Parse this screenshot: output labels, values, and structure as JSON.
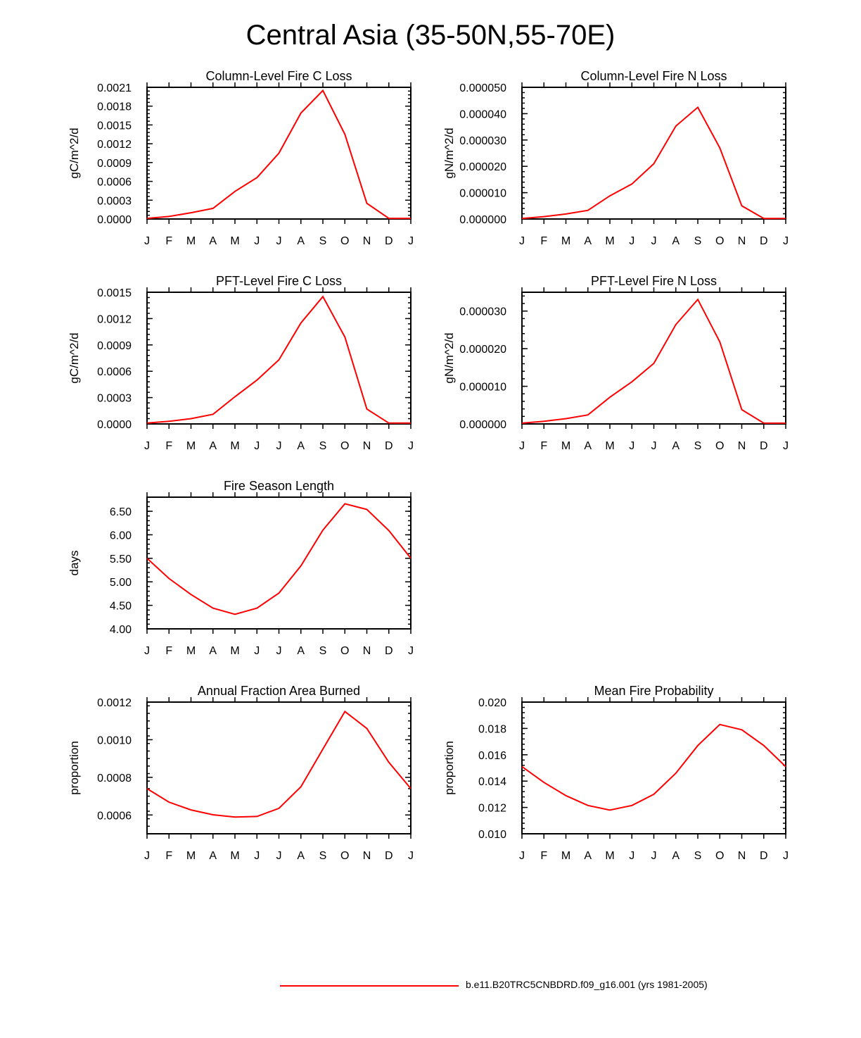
{
  "title": "Central Asia (35-50N,55-70E)",
  "legend": {
    "label": "b.e11.B20TRC5CNBDRD.f09_g16.001 (yrs 1981-2005)",
    "color": "#ff0000"
  },
  "chart_data": [
    {
      "type": "line",
      "title": "Column-Level Fire C Loss",
      "ylabel": "gC/m^2/d",
      "xlabel": "",
      "categories": [
        "J",
        "F",
        "M",
        "A",
        "M",
        "J",
        "J",
        "A",
        "S",
        "O",
        "N",
        "D",
        "J"
      ],
      "ylim": [
        0,
        0.0021
      ],
      "yticks": [
        "0.0000",
        "0.0003",
        "0.0006",
        "0.0009",
        "0.0012",
        "0.0015",
        "0.0018",
        "0.0021"
      ],
      "series": [
        {
          "name": "b.e11.B20TRC5CNBDRD.f09_g16.001 (yrs 1981-2005)",
          "values": [
            1e-05,
            4e-05,
            0.0001,
            0.00017,
            0.00044,
            0.00066,
            0.00105,
            0.00169,
            0.00205,
            0.00135,
            0.00025,
            1e-05,
            1e-05
          ]
        }
      ]
    },
    {
      "type": "line",
      "title": "Column-Level Fire N Loss",
      "ylabel": "gN/m^2/d",
      "xlabel": "",
      "categories": [
        "J",
        "F",
        "M",
        "A",
        "M",
        "J",
        "J",
        "A",
        "S",
        "O",
        "N",
        "D",
        "J"
      ],
      "ylim": [
        0,
        5e-05
      ],
      "yticks": [
        "0.000000",
        "0.000010",
        "0.000020",
        "0.000030",
        "0.000040",
        "0.000050"
      ],
      "series": [
        {
          "name": "b.e11.B20TRC5CNBDRD.f09_g16.001 (yrs 1981-2005)",
          "values": [
            2e-07,
            9e-07,
            1.9e-06,
            3.3e-06,
            8.8e-06,
            1.33e-05,
            2.1e-05,
            3.53e-05,
            4.24e-05,
            2.7e-05,
            5e-06,
            2e-07,
            2e-07
          ]
        }
      ]
    },
    {
      "type": "line",
      "title": "PFT-Level Fire C Loss",
      "ylabel": "gC/m^2/d",
      "xlabel": "",
      "categories": [
        "J",
        "F",
        "M",
        "A",
        "M",
        "J",
        "J",
        "A",
        "S",
        "O",
        "N",
        "D",
        "J"
      ],
      "ylim": [
        0,
        0.0015
      ],
      "yticks": [
        "0.0000",
        "0.0003",
        "0.0006",
        "0.0009",
        "0.0012",
        "0.0015"
      ],
      "series": [
        {
          "name": "b.e11.B20TRC5CNBDRD.f09_g16.001 (yrs 1981-2005)",
          "values": [
            1e-05,
            3e-05,
            6e-05,
            0.00011,
            0.00031,
            0.0005,
            0.00073,
            0.00115,
            0.00145,
            0.00099,
            0.00017,
            1e-05,
            1e-05
          ]
        }
      ]
    },
    {
      "type": "line",
      "title": "PFT-Level Fire N Loss",
      "ylabel": "gN/m^2/d",
      "xlabel": "",
      "categories": [
        "J",
        "F",
        "M",
        "A",
        "M",
        "J",
        "J",
        "A",
        "S",
        "O",
        "N",
        "D",
        "J"
      ],
      "ylim": [
        0,
        3.5e-05
      ],
      "yticks": [
        "0.000000",
        "0.000010",
        "0.000020",
        "0.000030"
      ],
      "series": [
        {
          "name": "b.e11.B20TRC5CNBDRD.f09_g16.001 (yrs 1981-2005)",
          "values": [
            2e-07,
            7e-07,
            1.4e-06,
            2.4e-06,
            7.1e-06,
            1.12e-05,
            1.61e-05,
            2.64e-05,
            3.31e-05,
            2.18e-05,
            3.8e-06,
            2e-07,
            2e-07
          ]
        }
      ]
    },
    {
      "type": "line",
      "title": "Fire Season Length",
      "ylabel": "days",
      "xlabel": "",
      "categories": [
        "J",
        "F",
        "M",
        "A",
        "M",
        "J",
        "J",
        "A",
        "S",
        "O",
        "N",
        "D",
        "J"
      ],
      "ylim": [
        4.0,
        6.8
      ],
      "yticks": [
        "4.00",
        "4.50",
        "5.00",
        "5.50",
        "6.00",
        "6.50"
      ],
      "series": [
        {
          "name": "b.e11.B20TRC5CNBDRD.f09_g16.001 (yrs 1981-2005)",
          "values": [
            5.5,
            5.07,
            4.73,
            4.44,
            4.31,
            4.44,
            4.76,
            5.34,
            6.1,
            6.66,
            6.54,
            6.09,
            5.5
          ]
        }
      ]
    },
    {
      "type": "line",
      "title": "Annual Fraction Area Burned",
      "ylabel": "proportion",
      "xlabel": "",
      "categories": [
        "J",
        "F",
        "M",
        "A",
        "M",
        "J",
        "J",
        "A",
        "S",
        "O",
        "N",
        "D",
        "J"
      ],
      "ylim": [
        0.0005,
        0.0012
      ],
      "yticks": [
        "0.0006",
        "0.0008",
        "0.0010",
        "0.0012"
      ],
      "series": [
        {
          "name": "b.e11.B20TRC5CNBDRD.f09_g16.001 (yrs 1981-2005)",
          "values": [
            0.00074,
            0.000668,
            0.000627,
            0.000601,
            0.000589,
            0.000592,
            0.000635,
            0.00075,
            0.00095,
            0.00115,
            0.00106,
            0.00088,
            0.00074
          ]
        }
      ]
    },
    {
      "type": "line",
      "title": "Mean Fire Probability",
      "ylabel": "proportion",
      "xlabel": "",
      "categories": [
        "J",
        "F",
        "M",
        "A",
        "M",
        "J",
        "J",
        "A",
        "S",
        "O",
        "N",
        "D",
        "J"
      ],
      "ylim": [
        0.01,
        0.02
      ],
      "yticks": [
        "0.010",
        "0.012",
        "0.014",
        "0.016",
        "0.018",
        "0.020"
      ],
      "series": [
        {
          "name": "b.e11.B20TRC5CNBDRD.f09_g16.001 (yrs 1981-2005)",
          "values": [
            0.0151,
            0.0139,
            0.0129,
            0.01215,
            0.0118,
            0.01215,
            0.013,
            0.0146,
            0.0167,
            0.0183,
            0.0179,
            0.0167,
            0.0151
          ]
        }
      ]
    }
  ]
}
